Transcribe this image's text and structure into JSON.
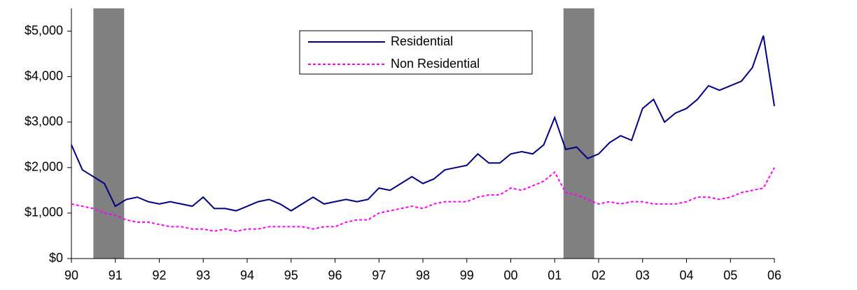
{
  "chart_data": {
    "type": "line",
    "x": [
      1990,
      1990.25,
      1990.5,
      1990.75,
      1991,
      1991.25,
      1991.5,
      1991.75,
      1992,
      1992.25,
      1992.5,
      1992.75,
      1993,
      1993.25,
      1993.5,
      1993.75,
      1994,
      1994.25,
      1994.5,
      1994.75,
      1995,
      1995.25,
      1995.5,
      1995.75,
      1996,
      1996.25,
      1996.5,
      1996.75,
      1997,
      1997.25,
      1997.5,
      1997.75,
      1998,
      1998.25,
      1998.5,
      1998.75,
      1999,
      1999.25,
      1999.5,
      1999.75,
      2000,
      2000.25,
      2000.5,
      2000.75,
      2001,
      2001.25,
      2001.5,
      2001.75,
      2002,
      2002.25,
      2002.5,
      2002.75,
      2003,
      2003.25,
      2003.5,
      2003.75,
      2004,
      2004.25,
      2004.5,
      2004.75,
      2005,
      2005.25,
      2005.5,
      2005.75,
      2006
    ],
    "series": [
      {
        "name": "Residential",
        "color": "#000080",
        "dashed": false,
        "values": [
          2500,
          1950,
          1800,
          1650,
          1150,
          1300,
          1350,
          1250,
          1200,
          1250,
          1200,
          1150,
          1350,
          1100,
          1100,
          1050,
          1150,
          1250,
          1300,
          1200,
          1050,
          1200,
          1350,
          1200,
          1250,
          1300,
          1250,
          1300,
          1550,
          1500,
          1650,
          1800,
          1650,
          1750,
          1950,
          2000,
          2050,
          2300,
          2100,
          2100,
          2300,
          2350,
          2300,
          2500,
          3100,
          2400,
          2450,
          2200,
          2300,
          2550,
          2700,
          2600,
          3300,
          3500,
          3000,
          3200,
          3300,
          3500,
          3800,
          3700,
          3800,
          3900,
          4200,
          4900,
          3350
        ]
      },
      {
        "name": "Non Residential",
        "color": "#ff00ff",
        "dashed": true,
        "values": [
          1200,
          1150,
          1100,
          1000,
          950,
          850,
          800,
          800,
          750,
          700,
          700,
          650,
          650,
          600,
          650,
          600,
          650,
          650,
          700,
          700,
          700,
          700,
          650,
          700,
          700,
          800,
          850,
          850,
          1000,
          1050,
          1100,
          1150,
          1100,
          1200,
          1250,
          1250,
          1250,
          1350,
          1400,
          1400,
          1550,
          1500,
          1600,
          1700,
          1900,
          1450,
          1400,
          1300,
          1200,
          1250,
          1200,
          1250,
          1250,
          1200,
          1200,
          1200,
          1250,
          1350,
          1350,
          1300,
          1350,
          1450,
          1500,
          1550,
          2000
        ]
      }
    ],
    "shaded_periods": [
      [
        1990.5,
        1991.2
      ],
      [
        2001.2,
        2001.9
      ]
    ],
    "shade_color": "#808080",
    "xlim": [
      1990,
      2006
    ],
    "xticks": [
      {
        "value": 1990,
        "label": "90"
      },
      {
        "value": 1991,
        "label": "91"
      },
      {
        "value": 1992,
        "label": "92"
      },
      {
        "value": 1993,
        "label": "93"
      },
      {
        "value": 1994,
        "label": "94"
      },
      {
        "value": 1995,
        "label": "95"
      },
      {
        "value": 1996,
        "label": "96"
      },
      {
        "value": 1997,
        "label": "97"
      },
      {
        "value": 1998,
        "label": "98"
      },
      {
        "value": 1999,
        "label": "99"
      },
      {
        "value": 2000,
        "label": "00"
      },
      {
        "value": 2001,
        "label": "01"
      },
      {
        "value": 2002,
        "label": "02"
      },
      {
        "value": 2003,
        "label": "03"
      },
      {
        "value": 2004,
        "label": "04"
      },
      {
        "value": 2005,
        "label": "05"
      },
      {
        "value": 2006,
        "label": "06"
      }
    ],
    "ylim": [
      0,
      5500
    ],
    "yticks": [
      {
        "value": 0,
        "label": "$0"
      },
      {
        "value": 1000,
        "label": "$1,000"
      },
      {
        "value": 2000,
        "label": "$2,000"
      },
      {
        "value": 3000,
        "label": "$3,000"
      },
      {
        "value": 4000,
        "label": "$4,000"
      },
      {
        "value": 5000,
        "label": "$5,000"
      }
    ],
    "legend": "top-center"
  }
}
